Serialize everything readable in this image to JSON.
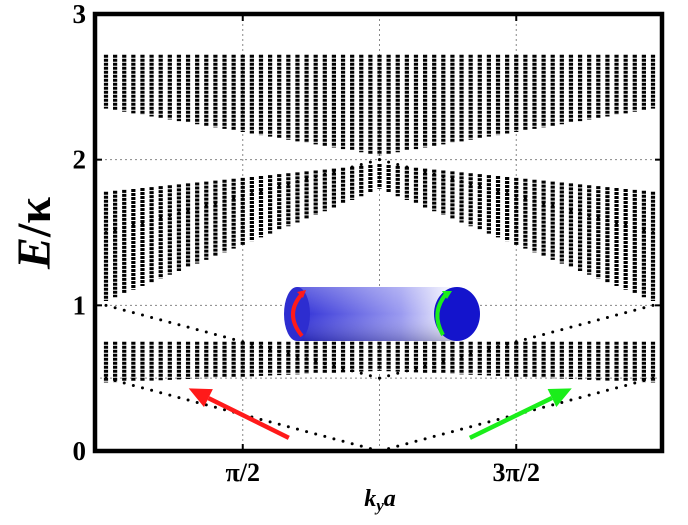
{
  "chart_data": {
    "type": "scatter",
    "title": "",
    "ylabel_main": "E",
    "ylabel_slash": "/",
    "ylabel_unit": "κ",
    "xlabel_k": "k",
    "xlabel_sub": "y",
    "xlabel_a": "a",
    "xlim": [
      0,
      6.2832
    ],
    "ylim": [
      0,
      3
    ],
    "xticks": [
      {
        "value": 1.5708,
        "label": "π/2"
      },
      {
        "value": 4.7124,
        "label": "3π/2"
      }
    ],
    "yticks": [
      {
        "value": 0,
        "label": "0"
      },
      {
        "value": 1,
        "label": "1"
      },
      {
        "value": 2,
        "label": "2"
      },
      {
        "value": 3,
        "label": "3"
      }
    ],
    "grid": true,
    "grid_lines_x": [
      1.5708,
      3.1416,
      4.7124
    ],
    "grid_lines_y": [
      0.5,
      1,
      2
    ],
    "columns": 61,
    "bulk_bands": [
      {
        "name": "band-1",
        "lower_min": 0.47,
        "lower_center": 0.55,
        "upper": 0.75
      },
      {
        "name": "band-2",
        "lower_min": 1.03,
        "lower_center": 1.8,
        "upper_min": 1.78,
        "upper_center": 1.97
      },
      {
        "name": "band-3",
        "lower_center": 2.03,
        "lower_edge": 2.35,
        "upper": 2.72
      }
    ],
    "edge_states": [
      {
        "name": "edge-state-low",
        "from": [
          0,
          0.5
        ],
        "to": [
          3.1416,
          0
        ]
      },
      {
        "name": "edge-state-low-mirror",
        "from": [
          3.1416,
          0
        ],
        "to": [
          6.2832,
          0.5
        ]
      },
      {
        "name": "edge-state-mid",
        "from": [
          0,
          1.0
        ],
        "to": [
          3.1416,
          0.5
        ]
      },
      {
        "name": "edge-state-mid-mirror",
        "from": [
          3.1416,
          0.5
        ],
        "to": [
          6.2832,
          1.0
        ]
      },
      {
        "name": "edge-state-high",
        "from": [
          0,
          1.5
        ],
        "to": [
          3.1416,
          2.0
        ]
      },
      {
        "name": "edge-state-high-mirror",
        "from": [
          3.1416,
          2.0
        ],
        "to": [
          6.2832,
          1.5
        ]
      }
    ],
    "arrows": [
      {
        "name": "left-moving-edge-arrow",
        "color": "#ff1a1a",
        "from": [
          2.1,
          0.09
        ],
        "to": [
          0.95,
          0.43
        ]
      },
      {
        "name": "right-moving-edge-arrow",
        "color": "#1aee1a",
        "from": [
          4.18,
          0.09
        ],
        "to": [
          5.35,
          0.43
        ]
      }
    ],
    "inset": {
      "name": "cylinder-inset",
      "body_color": "#4a4ae8",
      "cap_color": "#1414cc",
      "left_arrow_color": "#ff1a1a",
      "right_arrow_color": "#1aee1a"
    }
  }
}
